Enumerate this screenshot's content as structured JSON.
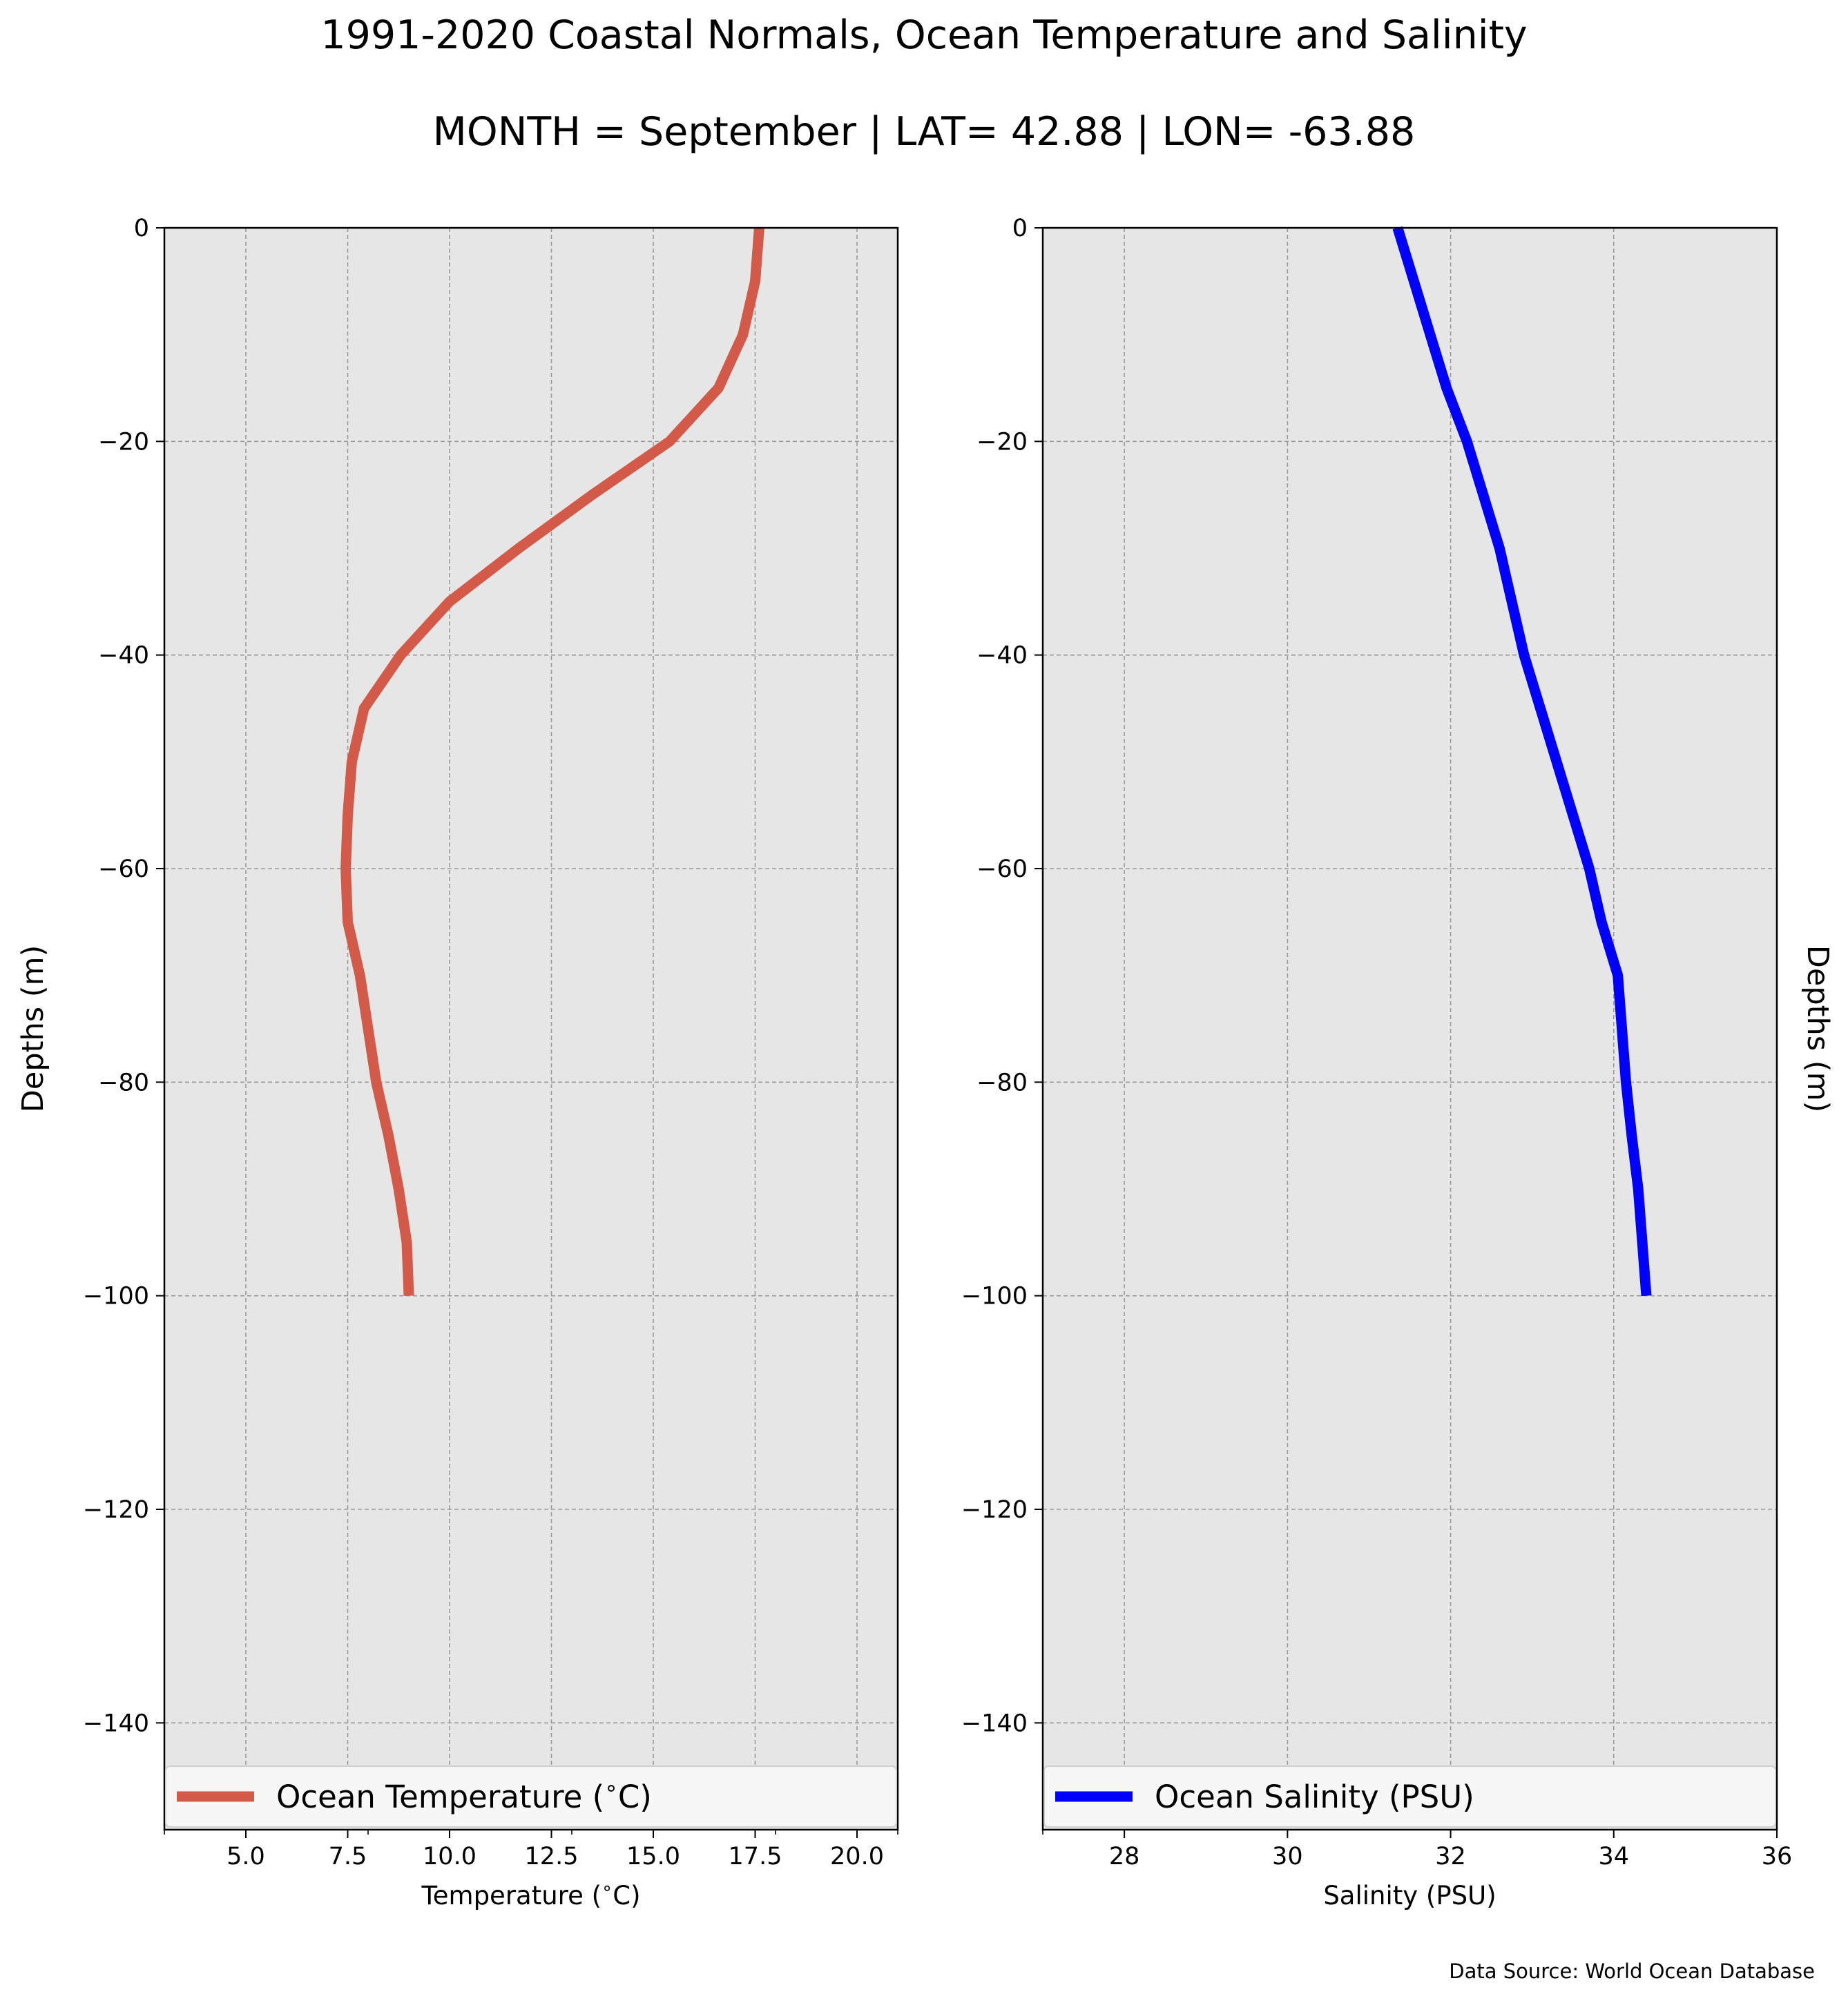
{
  "title": "1991-2020 Coastal Normals, Ocean Temperature and Salinity",
  "subtitle": "MONTH = September | LAT= 42.88 | LON= -63.88",
  "source": "Data Source: World Ocean Database",
  "colors": {
    "background": "#ffffff",
    "plot_bg": "#e6e6e6",
    "grid": "#9a9a9a",
    "temperature": "#d35a49",
    "salinity": "#0000ff"
  },
  "chart_data": [
    {
      "type": "line",
      "xlabel": "Temperature ($^\\circ$C)",
      "ylabel": "Depths (m)",
      "ylabel_side": "left",
      "xlim": [
        3,
        21
      ],
      "ylim": [
        -150,
        0
      ],
      "xticks": [
        5.0,
        7.5,
        10.0,
        12.5,
        15.0,
        17.5,
        20.0
      ],
      "xtick_labels": [
        "5.0",
        "7.5",
        "10.0",
        "12.5",
        "15.0",
        "17.5",
        "20.0"
      ],
      "xminor_ticks": [
        3,
        8,
        13,
        18,
        21
      ],
      "yticks": [
        0,
        -20,
        -40,
        -60,
        -80,
        -100,
        -120,
        -140
      ],
      "ytick_labels": [
        "0",
        "−20",
        "−40",
        "−60",
        "−80",
        "−100",
        "−120",
        "−140"
      ],
      "grid": true,
      "legend_position": "bottom",
      "series": [
        {
          "name": "Ocean Temperature ($^\\circ$C)",
          "color": "#d35a49",
          "x": [
            17.6,
            17.5,
            17.2,
            16.6,
            15.4,
            13.5,
            11.7,
            10.0,
            8.8,
            7.9,
            7.6,
            7.5,
            7.45,
            7.5,
            7.8,
            8.2,
            8.5,
            8.75,
            8.95,
            9.0
          ],
          "y": [
            0,
            -5,
            -10,
            -15,
            -20,
            -25,
            -30,
            -35,
            -40,
            -45,
            -50,
            -55,
            -60,
            -65,
            -70,
            -80,
            -85,
            -90,
            -95,
            -100
          ]
        }
      ]
    },
    {
      "type": "line",
      "xlabel": "Salinity (PSU)",
      "ylabel": "Depths (m)",
      "ylabel_side": "right",
      "xlim": [
        27,
        36
      ],
      "ylim": [
        -150,
        0
      ],
      "xticks": [
        28,
        30,
        32,
        34,
        36
      ],
      "xtick_labels": [
        "28",
        "30",
        "32",
        "34",
        "36"
      ],
      "xminor_ticks": [
        27
      ],
      "yticks": [
        0,
        -20,
        -40,
        -60,
        -80,
        -100,
        -120,
        -140
      ],
      "ytick_labels": [
        "0",
        "−20",
        "−40",
        "−60",
        "−80",
        "−100",
        "−120",
        "−140"
      ],
      "grid": true,
      "legend_position": "bottom",
      "series": [
        {
          "name": "Ocean Salinity (PSU)",
          "color": "#0000ff",
          "x": [
            31.35,
            31.55,
            31.75,
            31.95,
            32.2,
            32.4,
            32.6,
            32.75,
            32.9,
            33.1,
            33.3,
            33.5,
            33.7,
            33.85,
            34.05,
            34.15,
            34.22,
            34.3,
            34.4
          ],
          "y": [
            0,
            -5,
            -10,
            -15,
            -20,
            -25,
            -30,
            -35,
            -40,
            -45,
            -50,
            -55,
            -60,
            -65,
            -70,
            -80,
            -85,
            -90,
            -100
          ]
        }
      ]
    }
  ]
}
